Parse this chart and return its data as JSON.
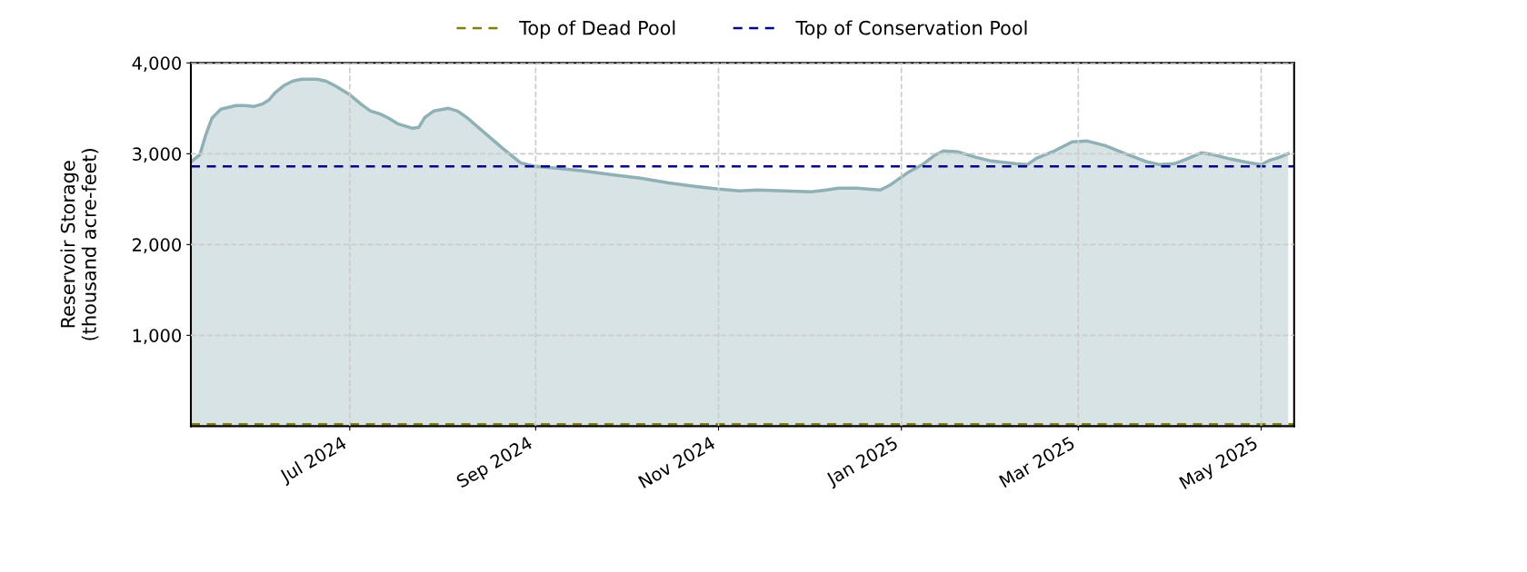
{
  "chart_data": {
    "type": "area",
    "ylabel": "Reservoir Storage\n(thousand acre-feet)",
    "x": [
      "2024-05-09",
      "2024-05-12",
      "2024-05-14",
      "2024-05-16",
      "2024-05-19",
      "2024-05-24",
      "2024-05-27",
      "2024-05-30",
      "2024-06-02",
      "2024-06-04",
      "2024-06-06",
      "2024-06-09",
      "2024-06-12",
      "2024-06-15",
      "2024-06-20",
      "2024-06-23",
      "2024-06-26",
      "2024-07-01",
      "2024-07-05",
      "2024-07-08",
      "2024-07-11",
      "2024-07-14",
      "2024-07-17",
      "2024-07-22",
      "2024-07-24",
      "2024-07-26",
      "2024-07-29",
      "2024-08-03",
      "2024-08-06",
      "2024-08-09",
      "2024-08-15",
      "2024-08-21",
      "2024-08-27",
      "2024-09-01",
      "2024-09-08",
      "2024-09-17",
      "2024-09-26",
      "2024-10-06",
      "2024-10-15",
      "2024-10-24",
      "2024-11-01",
      "2024-11-08",
      "2024-11-14",
      "2024-11-23",
      "2024-12-02",
      "2024-12-07",
      "2024-12-11",
      "2024-12-17",
      "2024-12-25",
      "2024-12-28",
      "2025-01-03",
      "2025-01-08",
      "2025-01-12",
      "2025-01-15",
      "2025-01-20",
      "2025-01-26",
      "2025-01-31",
      "2025-02-08",
      "2025-02-12",
      "2025-02-15",
      "2025-02-21",
      "2025-02-27",
      "2025-03-04",
      "2025-03-10",
      "2025-03-16",
      "2025-03-24",
      "2025-03-28",
      "2025-04-02",
      "2025-04-06",
      "2025-04-11",
      "2025-04-15",
      "2025-04-21",
      "2025-04-27",
      "2025-05-01",
      "2025-05-04",
      "2025-05-07",
      "2025-05-10"
    ],
    "series": [
      {
        "color": "#8fb0b5",
        "values": [
          2910,
          2990,
          3210,
          3390,
          3490,
          3530,
          3530,
          3520,
          3550,
          3590,
          3670,
          3750,
          3800,
          3820,
          3820,
          3800,
          3750,
          3650,
          3540,
          3470,
          3440,
          3390,
          3330,
          3280,
          3290,
          3400,
          3470,
          3500,
          3470,
          3400,
          3230,
          3060,
          2900,
          2860,
          2840,
          2810,
          2770,
          2730,
          2680,
          2640,
          2610,
          2590,
          2600,
          2590,
          2580,
          2600,
          2620,
          2620,
          2600,
          2650,
          2790,
          2880,
          2980,
          3030,
          3020,
          2960,
          2920,
          2890,
          2880,
          2950,
          3030,
          3130,
          3140,
          3090,
          3010,
          2910,
          2880,
          2890,
          2940,
          3010,
          2990,
          2940,
          2900,
          2880,
          2930,
          2960,
          3000
        ]
      }
    ],
    "ref_lines": [
      {
        "axis": "y",
        "value": 20,
        "label": "Top of Dead Pool",
        "color": "#808000",
        "line_style": "dashed"
      },
      {
        "axis": "y",
        "value": 2860,
        "label": "Top of Conservation Pool",
        "color": "#00008b",
        "line_style": "dashed"
      }
    ],
    "xlim": [
      "2024-05-09",
      "2025-05-12"
    ],
    "xticks": [
      {
        "value": "2024-07-01",
        "label": "Jul 2024"
      },
      {
        "value": "2024-09-01",
        "label": "Sep 2024"
      },
      {
        "value": "2024-11-01",
        "label": "Nov 2024"
      },
      {
        "value": "2025-01-01",
        "label": "Jan 2025"
      },
      {
        "value": "2025-03-01",
        "label": "Mar 2025"
      },
      {
        "value": "2025-05-01",
        "label": "May 2025"
      }
    ],
    "ylim": [
      0,
      4000
    ],
    "yticks": [
      {
        "value": 1000,
        "label": "1,000"
      },
      {
        "value": 2000,
        "label": "2,000"
      },
      {
        "value": 3000,
        "label": "3,000"
      },
      {
        "value": 4000,
        "label": "4,000"
      }
    ],
    "grid": true,
    "legend": "top"
  }
}
